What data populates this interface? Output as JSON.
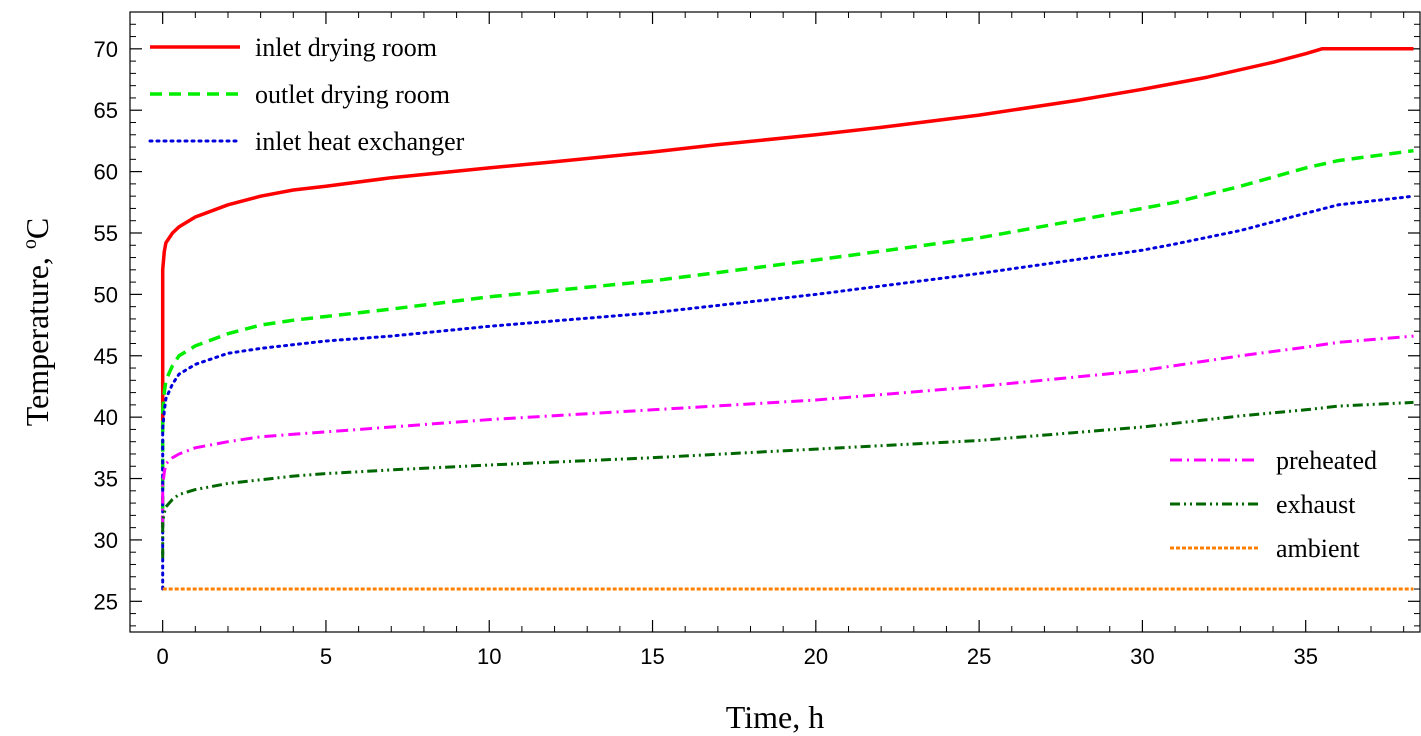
{
  "chart_data": {
    "type": "line",
    "xlabel": "Time, h",
    "ylabel_main": "Temperature, ",
    "ylabel_sup": "o",
    "ylabel_unit": "C",
    "xlim": [
      -1,
      38.5
    ],
    "ylim": [
      22.5,
      73
    ],
    "xticks": [
      0,
      5,
      10,
      15,
      20,
      25,
      30,
      35
    ],
    "yticks": [
      25,
      30,
      35,
      40,
      45,
      50,
      55,
      60,
      65,
      70
    ],
    "x_minor_step": 1,
    "y_minor_step": 1,
    "grid": false,
    "legend_placement": [
      "top-left",
      "bottom-right"
    ],
    "series": [
      {
        "name": "inlet drying room",
        "color": "#ff0000",
        "dash": "solid",
        "legend_group": "top-left",
        "x": [
          0,
          0,
          0.05,
          0.1,
          0.3,
          0.5,
          1,
          2,
          3,
          4,
          5,
          7,
          10,
          12,
          15,
          17,
          20,
          22,
          25,
          28,
          30,
          32,
          34,
          35,
          35.5,
          36,
          38.3
        ],
        "y": [
          39,
          52,
          53.5,
          54.2,
          55,
          55.5,
          56.3,
          57.3,
          58,
          58.5,
          58.8,
          59.5,
          60.3,
          60.8,
          61.6,
          62.2,
          63,
          63.6,
          64.6,
          65.8,
          66.7,
          67.7,
          68.9,
          69.6,
          70,
          70,
          70
        ]
      },
      {
        "name": "outlet drying room",
        "color": "#00ee00",
        "dash": "dashed",
        "legend_group": "top-left",
        "x": [
          0,
          0,
          0.05,
          0.1,
          0.3,
          0.5,
          1,
          2,
          3,
          4,
          5,
          7,
          10,
          15,
          20,
          25,
          30,
          31,
          33,
          35,
          36,
          38.3
        ],
        "y": [
          31,
          40.5,
          42,
          43,
          44.2,
          45,
          45.8,
          46.8,
          47.5,
          47.9,
          48.2,
          48.8,
          49.8,
          51.1,
          52.8,
          54.6,
          57,
          57.5,
          58.8,
          60.3,
          60.9,
          61.7
        ]
      },
      {
        "name": "inlet heat exchanger",
        "color": "#0000dd",
        "dash": "dotted",
        "legend_group": "top-left",
        "x": [
          0,
          0,
          0.05,
          0.1,
          0.3,
          0.5,
          1,
          2,
          3,
          4,
          5,
          7,
          10,
          15,
          20,
          25,
          30,
          31,
          33,
          35,
          36,
          38.3
        ],
        "y": [
          26,
          39,
          40.5,
          41.5,
          42.7,
          43.5,
          44.3,
          45.2,
          45.6,
          45.9,
          46.2,
          46.6,
          47.4,
          48.5,
          50,
          51.7,
          53.6,
          54.1,
          55.2,
          56.6,
          57.3,
          58
        ]
      },
      {
        "name": "preheated",
        "color": "#ff00ff",
        "dash": "dashdot",
        "legend_group": "bottom-right",
        "x": [
          0,
          0,
          0.05,
          0.1,
          0.3,
          0.5,
          1,
          2,
          3,
          4,
          5,
          7,
          10,
          15,
          20,
          25,
          30,
          33,
          35,
          36,
          38.3
        ],
        "y": [
          31,
          34.5,
          35.5,
          36.2,
          36.7,
          37,
          37.5,
          38,
          38.4,
          38.6,
          38.8,
          39.2,
          39.8,
          40.6,
          41.4,
          42.5,
          43.8,
          45,
          45.7,
          46.1,
          46.6
        ]
      },
      {
        "name": "exhaust",
        "color": "#006600",
        "dash": "dashdotdot",
        "legend_group": "bottom-right",
        "x": [
          0,
          0,
          0.05,
          0.1,
          0.3,
          0.5,
          1,
          2,
          3,
          4,
          5,
          7,
          10,
          15,
          20,
          25,
          30,
          33,
          35,
          36,
          38.3
        ],
        "y": [
          28.5,
          31.5,
          32.2,
          32.7,
          33.3,
          33.7,
          34.1,
          34.6,
          34.9,
          35.2,
          35.4,
          35.7,
          36.1,
          36.7,
          37.4,
          38.1,
          39.2,
          40.1,
          40.6,
          40.9,
          41.2
        ]
      },
      {
        "name": "ambient",
        "color": "#ff8000",
        "dash": "shortdot",
        "legend_group": "bottom-right",
        "x": [
          0,
          38.3
        ],
        "y": [
          26,
          26
        ]
      }
    ]
  }
}
